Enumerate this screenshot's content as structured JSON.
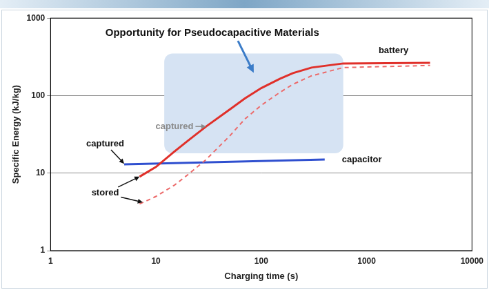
{
  "chart_data": {
    "type": "line",
    "title": "Opportunity for Pseudocapacitive Materials",
    "x_label": "Charging time (s)",
    "y_label": "Specific Energy (kJ/kg)",
    "log": true,
    "grid": "y",
    "xlim": [
      1,
      10000
    ],
    "xticks": [
      1,
      10,
      100,
      1000,
      10000
    ],
    "ylim": [
      1,
      1000
    ],
    "yticks": [
      1,
      10,
      100,
      1000
    ],
    "series": [
      {
        "color": "#e0302a",
        "line_style": "solid",
        "x": [
          7,
          10,
          15,
          20,
          30,
          50,
          70,
          100,
          150,
          200,
          300,
          600,
          4000
        ],
        "values": [
          9,
          12,
          19,
          26,
          40,
          66,
          92,
          125,
          165,
          195,
          230,
          260,
          265
        ]
      },
      {
        "color": "#ec6a6a",
        "line_style": "dashed",
        "x": [
          7,
          10,
          15,
          20,
          30,
          50,
          70,
          100,
          150,
          200,
          300,
          600,
          4000
        ],
        "values": [
          4,
          5,
          7,
          9.5,
          15,
          30,
          50,
          75,
          110,
          140,
          180,
          230,
          245
        ]
      },
      {
        "color": "#2f4fcf",
        "line_style": "solid",
        "x": [
          5,
          400
        ],
        "values": [
          13,
          15
        ]
      }
    ],
    "region": {
      "x": [
        12,
        600
      ],
      "y": [
        18,
        350
      ],
      "color": "#d6e3f3"
    },
    "annotations": [
      {
        "text": "battery",
        "x": 1800,
        "y": 380
      },
      {
        "text": "capacitor",
        "x": 900,
        "y": 15
      },
      {
        "text": "captured",
        "x": 3.3,
        "y": 24,
        "arrows": [
          [
            5,
            13.2
          ]
        ]
      },
      {
        "text": "stored",
        "x": 3.3,
        "y": 5.5,
        "arrows": [
          [
            7,
            9
          ],
          [
            7.5,
            4.2
          ]
        ]
      },
      {
        "text": "captured",
        "x": 15,
        "y": 40,
        "arrows": [
          [
            30,
            40
          ]
        ],
        "color": "#8a8a8a"
      }
    ]
  }
}
